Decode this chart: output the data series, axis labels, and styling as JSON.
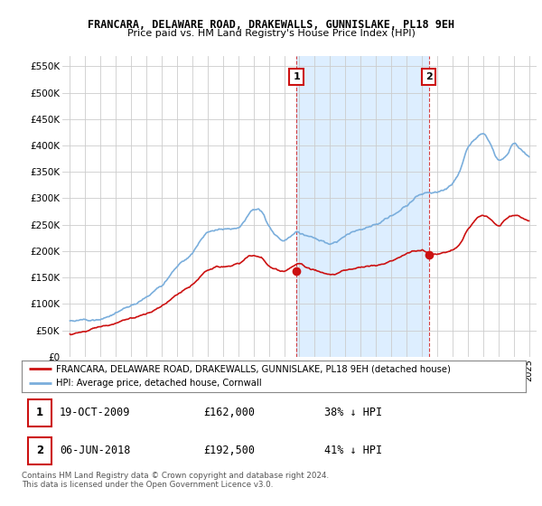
{
  "title": "FRANCARA, DELAWARE ROAD, DRAKEWALLS, GUNNISLAKE, PL18 9EH",
  "subtitle": "Price paid vs. HM Land Registry's House Price Index (HPI)",
  "ylabel_ticks": [
    "£0",
    "£50K",
    "£100K",
    "£150K",
    "£200K",
    "£250K",
    "£300K",
    "£350K",
    "£400K",
    "£450K",
    "£500K",
    "£550K"
  ],
  "ytick_values": [
    0,
    50000,
    100000,
    150000,
    200000,
    250000,
    300000,
    350000,
    400000,
    450000,
    500000,
    550000
  ],
  "ylim": [
    0,
    570000
  ],
  "xlim_start": 1994.5,
  "xlim_end": 2025.5,
  "background_color": "#ffffff",
  "plot_background": "#ffffff",
  "grid_color": "#cccccc",
  "hpi_color": "#7aaedc",
  "price_color": "#cc1111",
  "sale1_date": "19-OCT-2009",
  "sale1_price": 162000,
  "sale1_pct": "38% ↓ HPI",
  "sale1_x": 2009.8,
  "sale2_date": "06-JUN-2018",
  "sale2_price": 192500,
  "sale2_pct": "41% ↓ HPI",
  "sale2_x": 2018.45,
  "legend_label_red": "FRANCARA, DELAWARE ROAD, DRAKEWALLS, GUNNISLAKE, PL18 9EH (detached house)",
  "legend_label_blue": "HPI: Average price, detached house, Cornwall",
  "footer": "Contains HM Land Registry data © Crown copyright and database right 2024.\nThis data is licensed under the Open Government Licence v3.0.",
  "annotation_box_color": "#cc1111",
  "shade_color": "#ddeeff"
}
